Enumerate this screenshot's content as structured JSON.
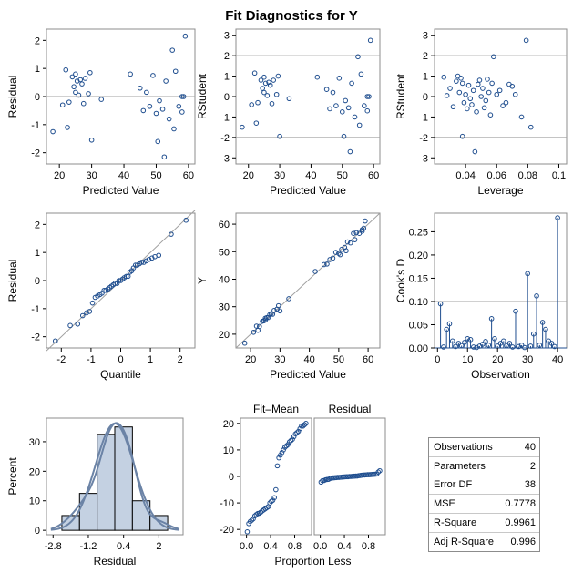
{
  "title": "Fit Diagnostics for Y",
  "colors": {
    "marker": "#1f4e8f",
    "line": "#a0a0a0",
    "frame": "#8c8c8c",
    "bar_fill": "#c4d1e2",
    "curve": "#6b83a6"
  },
  "chart_data": [
    {
      "id": "resid_vs_pred",
      "type": "scatter",
      "xlabel": "Predicted Value",
      "ylabel": "Residual",
      "xlim": [
        16,
        62
      ],
      "ylim": [
        -2.4,
        2.4
      ],
      "xticks": [
        20,
        30,
        40,
        50,
        60
      ],
      "yticks": [
        -2,
        -1,
        0,
        1,
        2
      ],
      "reference_lines": {
        "y": [
          0
        ]
      },
      "x": [
        18,
        21,
        22,
        22.5,
        23,
        24,
        24.5,
        25,
        25,
        25.5,
        26,
        26.5,
        27,
        27.5,
        28,
        29,
        29.5,
        30,
        33,
        42,
        45,
        46,
        47,
        48,
        49,
        50,
        50.5,
        51,
        52,
        52.5,
        53,
        54,
        55,
        55.5,
        56,
        57,
        58,
        58,
        58.5,
        59
      ],
      "y": [
        -1.25,
        -0.3,
        0.95,
        -1.1,
        -0.2,
        0.7,
        0.35,
        0.15,
        0.8,
        0.55,
        0.05,
        0.6,
        0.45,
        -0.25,
        0.65,
        0.1,
        0.85,
        -1.55,
        -0.1,
        0.8,
        0.3,
        -0.5,
        0.15,
        -0.35,
        0.75,
        -0.6,
        -1.6,
        -0.15,
        -0.45,
        -2.15,
        0.55,
        -0.8,
        1.65,
        -1.15,
        0.9,
        -0.35,
        0.0,
        -0.55,
        0.0,
        2.15
      ]
    },
    {
      "id": "rstudent_vs_pred",
      "type": "scatter",
      "xlabel": "Predicted Value",
      "ylabel": "RStudent",
      "xlim": [
        16,
        62
      ],
      "ylim": [
        -3.3,
        3.3
      ],
      "xticks": [
        20,
        30,
        40,
        50,
        60
      ],
      "yticks": [
        -3,
        -2,
        -1,
        0,
        1,
        2,
        3
      ],
      "reference_lines": {
        "y": [
          -2,
          2
        ]
      },
      "x": [
        18,
        21,
        22,
        22.5,
        23,
        24,
        24.5,
        25,
        25,
        25.5,
        26,
        26.5,
        27,
        27.5,
        28,
        29,
        29.5,
        30,
        33,
        42,
        45,
        46,
        47,
        48,
        49,
        50,
        50.5,
        51,
        52,
        52.5,
        53,
        54,
        55,
        55.5,
        56,
        57,
        58,
        58,
        58.5,
        59
      ],
      "y": [
        -1.5,
        -0.4,
        1.15,
        -1.3,
        -0.3,
        0.8,
        0.4,
        0.2,
        0.95,
        0.65,
        0.05,
        0.7,
        0.55,
        -0.35,
        0.8,
        0.1,
        1.0,
        -1.95,
        -0.1,
        0.95,
        0.35,
        -0.6,
        0.2,
        -0.45,
        0.9,
        -0.75,
        -1.95,
        -0.2,
        -0.55,
        -2.7,
        0.65,
        -1.0,
        1.95,
        -1.4,
        1.1,
        -0.45,
        0.0,
        -0.7,
        0.0,
        2.75
      ]
    },
    {
      "id": "rstudent_vs_leverage",
      "type": "scatter",
      "xlabel": "Leverage",
      "ylabel": "RStudent",
      "xlim": [
        0.02,
        0.105
      ],
      "ylim": [
        -3.3,
        3.3
      ],
      "xticks": [
        0.04,
        0.06,
        0.08,
        0.1
      ],
      "yticks": [
        -3,
        -2,
        -1,
        0,
        1,
        2,
        3
      ],
      "reference_lines": {
        "y": [
          -2,
          2
        ]
      },
      "x": [
        0.026,
        0.028,
        0.03,
        0.032,
        0.034,
        0.035,
        0.036,
        0.037,
        0.038,
        0.039,
        0.04,
        0.041,
        0.042,
        0.043,
        0.044,
        0.045,
        0.046,
        0.047,
        0.048,
        0.049,
        0.05,
        0.051,
        0.052,
        0.053,
        0.054,
        0.055,
        0.056,
        0.057,
        0.058,
        0.06,
        0.062,
        0.064,
        0.066,
        0.068,
        0.07,
        0.072,
        0.076,
        0.079,
        0.082,
        0.038
      ],
      "y": [
        0.95,
        0.05,
        0.4,
        -0.5,
        0.75,
        1.0,
        0.2,
        0.9,
        0.65,
        -0.3,
        0.1,
        -0.6,
        0.55,
        -0.1,
        -0.4,
        0.3,
        -2.7,
        -0.75,
        0.6,
        0.8,
        0.0,
        0.4,
        -0.55,
        -0.2,
        0.85,
        0.2,
        -0.9,
        0.65,
        1.95,
        0.1,
        0.3,
        -0.45,
        -0.3,
        0.6,
        0.5,
        0.1,
        -1.0,
        2.75,
        -1.5,
        -1.95
      ]
    },
    {
      "id": "qq_plot",
      "type": "scatter",
      "xlabel": "Quantile",
      "ylabel": "Residual",
      "xlim": [
        -2.5,
        2.5
      ],
      "ylim": [
        -2.4,
        2.4
      ],
      "xticks": [
        -2,
        -1,
        0,
        1,
        2
      ],
      "yticks": [
        -2,
        -1,
        0,
        1,
        2
      ],
      "reference_lines": {
        "diagonal": [
          [
            -2.5,
            -2.5
          ],
          [
            2.5,
            2.5
          ]
        ]
      },
      "x": [
        -2.2,
        -1.7,
        -1.45,
        -1.28,
        -1.15,
        -1.05,
        -0.95,
        -0.86,
        -0.78,
        -0.7,
        -0.63,
        -0.56,
        -0.5,
        -0.43,
        -0.37,
        -0.31,
        -0.25,
        -0.19,
        -0.12,
        -0.06,
        0.0,
        0.06,
        0.12,
        0.19,
        0.25,
        0.31,
        0.37,
        0.43,
        0.5,
        0.56,
        0.63,
        0.7,
        0.78,
        0.86,
        0.95,
        1.05,
        1.15,
        1.28,
        1.7,
        2.2
      ],
      "y": [
        -2.15,
        -1.6,
        -1.55,
        -1.25,
        -1.15,
        -1.1,
        -0.8,
        -0.6,
        -0.55,
        -0.5,
        -0.45,
        -0.35,
        -0.35,
        -0.3,
        -0.25,
        -0.2,
        -0.15,
        -0.1,
        -0.1,
        0.0,
        0.0,
        0.05,
        0.1,
        0.15,
        0.15,
        0.3,
        0.35,
        0.45,
        0.55,
        0.55,
        0.6,
        0.65,
        0.65,
        0.7,
        0.75,
        0.8,
        0.85,
        0.9,
        1.65,
        2.15
      ]
    },
    {
      "id": "y_vs_pred",
      "type": "scatter",
      "xlabel": "Predicted Value",
      "ylabel": "Y",
      "xlim": [
        15,
        64
      ],
      "ylim": [
        15,
        64
      ],
      "xticks": [
        20,
        30,
        40,
        50,
        60
      ],
      "yticks": [
        20,
        30,
        40,
        50,
        60
      ],
      "reference_lines": {
        "diagonal": [
          [
            15,
            15
          ],
          [
            64,
            64
          ]
        ]
      },
      "x": [
        18,
        21,
        22,
        22.5,
        23,
        24,
        24.5,
        25,
        25,
        25.5,
        26,
        26.5,
        27,
        27.5,
        28,
        29,
        29.5,
        30,
        33,
        42,
        45,
        46,
        47,
        48,
        49,
        50,
        50.5,
        51,
        52,
        52.5,
        53,
        54,
        55,
        55.5,
        56,
        57,
        58,
        58,
        58.5,
        59
      ],
      "y": [
        16.75,
        20.7,
        22.95,
        21.4,
        22.8,
        24.7,
        24.85,
        25.15,
        25.8,
        26.05,
        26.05,
        27.1,
        27.45,
        27.25,
        28.65,
        29.1,
        30.35,
        28.45,
        32.9,
        42.8,
        45.3,
        45.5,
        47.15,
        47.65,
        49.75,
        49.4,
        48.9,
        50.85,
        51.55,
        50.35,
        53.55,
        53.2,
        56.65,
        54.35,
        56.9,
        56.65,
        58.0,
        57.45,
        58.5,
        61.15
      ]
    },
    {
      "id": "cooks_d",
      "type": "needle",
      "xlabel": "Observation",
      "ylabel": "Cook's D",
      "xlim": [
        -1,
        43
      ],
      "ylim": [
        0,
        0.29
      ],
      "xticks": [
        0,
        10,
        20,
        30,
        40
      ],
      "yticks": [
        0.0,
        0.05,
        0.1,
        0.15,
        0.2,
        0.25
      ],
      "reference_lines": {
        "y": [
          0.1
        ]
      },
      "x": [
        1,
        2,
        3,
        4,
        5,
        6,
        7,
        8,
        9,
        10,
        11,
        12,
        13,
        14,
        15,
        16,
        17,
        18,
        19,
        20,
        21,
        22,
        23,
        24,
        25,
        26,
        27,
        28,
        29,
        30,
        31,
        32,
        33,
        34,
        35,
        36,
        37,
        38,
        39,
        40
      ],
      "y": [
        0.095,
        0.002,
        0.04,
        0.052,
        0.015,
        0.003,
        0.01,
        0.005,
        0.012,
        0.02,
        0.018,
        0.002,
        0.001,
        0.004,
        0.008,
        0.014,
        0.006,
        0.063,
        0.02,
        0.004,
        0.01,
        0.015,
        0.005,
        0.01,
        0.002,
        0.079,
        0.003,
        0.006,
        0.001,
        0.16,
        0.004,
        0.03,
        0.112,
        0.006,
        0.055,
        0.04,
        0.015,
        0.01,
        0.003,
        0.28
      ]
    },
    {
      "id": "residual_histogram",
      "type": "histogram",
      "xlabel": "Residual",
      "ylabel": "Percent",
      "xlim": [
        -3.1,
        3.1
      ],
      "ylim": [
        -1.5,
        38
      ],
      "xticks": [
        -2.8,
        -1.2,
        0.4,
        2.0
      ],
      "xtick_labels": [
        "-2.8",
        "-1.2",
        "0.4",
        "2"
      ],
      "yticks": [
        0,
        10,
        20,
        30
      ],
      "bin_edges": [
        -2.4,
        -1.6,
        -0.8,
        0.0,
        0.8,
        1.6,
        2.4
      ],
      "values": [
        5.0,
        12.5,
        32.5,
        35.0,
        10.0,
        5.0
      ],
      "curves": [
        "normal",
        "kernel"
      ]
    },
    {
      "id": "rf_spread",
      "type": "scatter",
      "xlabel": "Proportion Less",
      "ylabel": "",
      "panels": [
        "Fit–Mean",
        "Residual"
      ],
      "xlim": [
        -0.1,
        1.08
      ],
      "ylim": [
        -22,
        22
      ],
      "xticks": [
        0.0,
        0.4,
        0.8
      ],
      "xtick_labels": [
        "0.0",
        "0.4",
        "0.8"
      ],
      "yticks": [
        -20,
        -10,
        0,
        10,
        20
      ],
      "series": [
        {
          "name": "Fit–Mean",
          "x": [
            0.0125,
            0.0375,
            0.0625,
            0.0875,
            0.1125,
            0.1375,
            0.1625,
            0.1875,
            0.2125,
            0.2375,
            0.2625,
            0.2875,
            0.3125,
            0.3375,
            0.3625,
            0.3875,
            0.4125,
            0.4375,
            0.4625,
            0.4875,
            0.5125,
            0.5375,
            0.5625,
            0.5875,
            0.6125,
            0.6375,
            0.6625,
            0.6875,
            0.7125,
            0.7375,
            0.7625,
            0.7875,
            0.8125,
            0.8375,
            0.8625,
            0.8875,
            0.9125,
            0.9375,
            0.9625,
            0.9875
          ],
          "y": [
            -20.9,
            -17.8,
            -17.0,
            -16.5,
            -16.0,
            -14.9,
            -14.4,
            -14.0,
            -13.9,
            -13.5,
            -13.0,
            -12.6,
            -12.2,
            -11.8,
            -11.4,
            -10.0,
            -9.4,
            -9.0,
            -8.0,
            -5.0,
            4.0,
            7.0,
            8.0,
            9.0,
            10.0,
            11.0,
            11.5,
            12.0,
            13.0,
            13.5,
            14.0,
            15.0,
            16.0,
            16.5,
            17.0,
            18.0,
            19.0,
            19.0,
            19.5,
            20.0
          ]
        },
        {
          "name": "Residual",
          "x": [
            0.0125,
            0.0375,
            0.0625,
            0.0875,
            0.1125,
            0.1375,
            0.1625,
            0.1875,
            0.2125,
            0.2375,
            0.2625,
            0.2875,
            0.3125,
            0.3375,
            0.3625,
            0.3875,
            0.4125,
            0.4375,
            0.4625,
            0.4875,
            0.5125,
            0.5375,
            0.5625,
            0.5875,
            0.6125,
            0.6375,
            0.6625,
            0.6875,
            0.7125,
            0.7375,
            0.7625,
            0.7875,
            0.8125,
            0.8375,
            0.8625,
            0.8875,
            0.9125,
            0.9375,
            0.9625,
            0.9875
          ],
          "y": [
            -2.15,
            -1.6,
            -1.55,
            -1.25,
            -1.15,
            -1.1,
            -0.8,
            -0.6,
            -0.55,
            -0.5,
            -0.45,
            -0.35,
            -0.35,
            -0.3,
            -0.25,
            -0.2,
            -0.15,
            -0.1,
            -0.1,
            0.0,
            0.0,
            0.05,
            0.1,
            0.15,
            0.15,
            0.3,
            0.35,
            0.45,
            0.55,
            0.55,
            0.6,
            0.65,
            0.65,
            0.7,
            0.75,
            0.8,
            0.85,
            0.9,
            1.65,
            2.15
          ]
        }
      ]
    }
  ],
  "stats_table": [
    {
      "label": "Observations",
      "value": "40"
    },
    {
      "label": "Parameters",
      "value": "2"
    },
    {
      "label": "Error DF",
      "value": "38"
    },
    {
      "label": "MSE",
      "value": "0.7778"
    },
    {
      "label": "R-Square",
      "value": "0.9961"
    },
    {
      "label": "Adj R-Square",
      "value": "0.996"
    }
  ]
}
